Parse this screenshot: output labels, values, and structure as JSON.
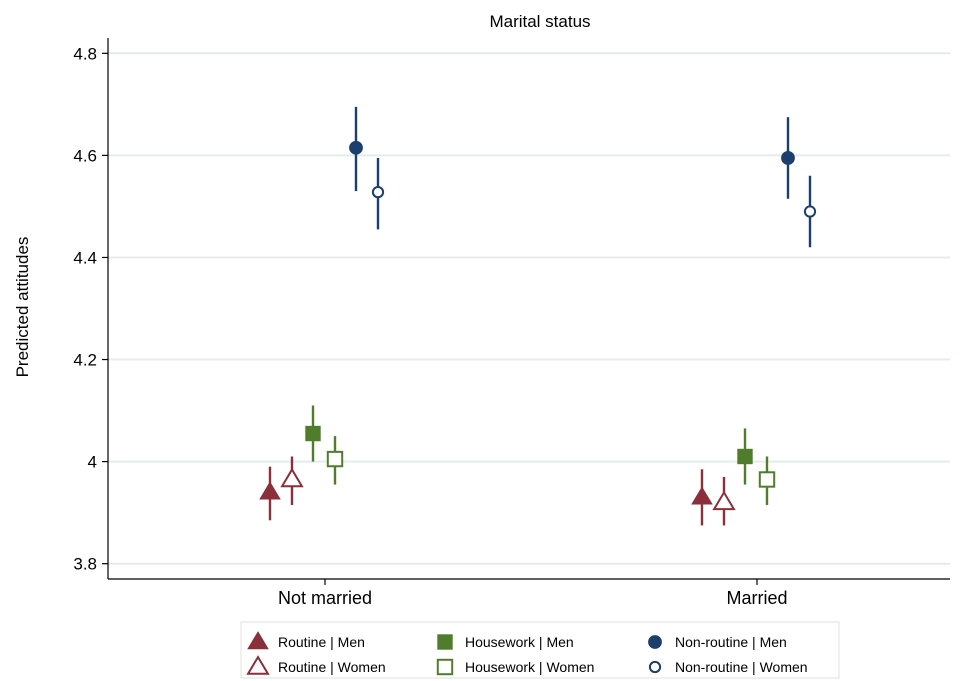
{
  "chart_data": {
    "type": "scatter",
    "title": "Marital status",
    "xlabel": "",
    "ylabel": "Predicted attitudes",
    "categories": [
      "Not married",
      "Married"
    ],
    "ylim": [
      3.77,
      4.83
    ],
    "yticks": [
      3.8,
      4,
      4.2,
      4.4,
      4.6,
      4.8
    ],
    "ytick_labels": [
      "3.8",
      "4",
      "4.2",
      "4.4",
      "4.6",
      "4.8"
    ],
    "grid": true,
    "legend_position": "bottom",
    "series": [
      {
        "name": "Routine | Men",
        "color": "#8b2f3a",
        "marker": "triangle-filled",
        "values": [
          3.94,
          3.93
        ],
        "lower": [
          3.885,
          3.875
        ],
        "upper": [
          3.99,
          3.985
        ]
      },
      {
        "name": "Routine | Women",
        "color": "#8b2f3a",
        "marker": "triangle-open",
        "values": [
          3.965,
          3.92
        ],
        "lower": [
          3.915,
          3.875
        ],
        "upper": [
          4.01,
          3.97
        ]
      },
      {
        "name": "Housework | Men",
        "color": "#4f7d2c",
        "marker": "square-filled",
        "values": [
          4.055,
          4.01
        ],
        "lower": [
          4.0,
          3.955
        ],
        "upper": [
          4.11,
          4.065
        ]
      },
      {
        "name": "Housework | Women",
        "color": "#4f7d2c",
        "marker": "square-open",
        "values": [
          4.005,
          3.965
        ],
        "lower": [
          3.955,
          3.915
        ],
        "upper": [
          4.05,
          4.01
        ]
      },
      {
        "name": "Non-routine | Men",
        "color": "#1c3f6e",
        "marker": "circle-filled",
        "values": [
          4.615,
          4.595
        ],
        "lower": [
          4.53,
          4.515
        ],
        "upper": [
          4.695,
          4.675
        ]
      },
      {
        "name": "Non-routine | Women",
        "color": "#1c3f6e",
        "marker": "circle-open",
        "values": [
          4.528,
          4.49
        ],
        "lower": [
          4.455,
          4.42
        ],
        "upper": [
          4.595,
          4.56
        ]
      }
    ]
  }
}
